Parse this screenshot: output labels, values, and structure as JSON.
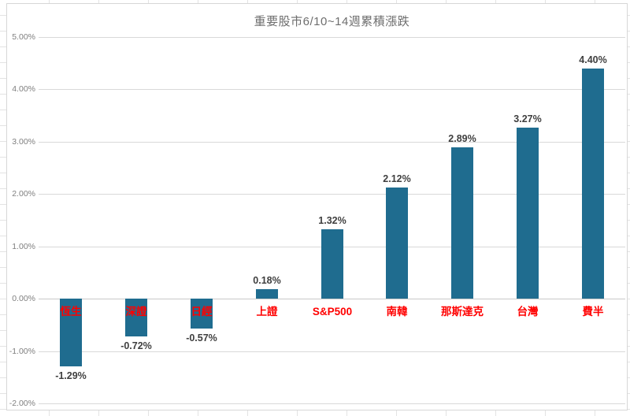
{
  "chart_title": "重要股市6/10~14週累積漲跌",
  "chart_data": {
    "type": "bar",
    "title": "重要股市6/10~14週累積漲跌",
    "categories": [
      "恆生",
      "深證",
      "日經",
      "上證",
      "S&P500",
      "南韓",
      "那斯達克",
      "台灣",
      "費半"
    ],
    "values": [
      -1.29,
      -0.72,
      -0.57,
      0.18,
      1.32,
      2.12,
      2.89,
      3.27,
      4.4
    ],
    "value_labels": [
      "-1.29%",
      "-0.72%",
      "-0.57%",
      "0.18%",
      "1.32%",
      "2.12%",
      "2.89%",
      "3.27%",
      "4.40%"
    ],
    "xlabel": "",
    "ylabel": "",
    "ylim": [
      -2,
      5
    ],
    "ytick_step": 1,
    "ytick_labels": [
      "5.00%",
      "4.00%",
      "3.00%",
      "2.00%",
      "1.00%",
      "0.00%",
      "-1.00%",
      "-2.00%"
    ],
    "grid": true,
    "legend": false,
    "bar_color": "#1f6c8f",
    "category_label_color": "#ff0000",
    "value_label_color": "#3f3f3f",
    "ytick_label_color": "#7f7f7f",
    "gridline_color": "#d9d9d9",
    "title_color": "#6e6e6e"
  }
}
